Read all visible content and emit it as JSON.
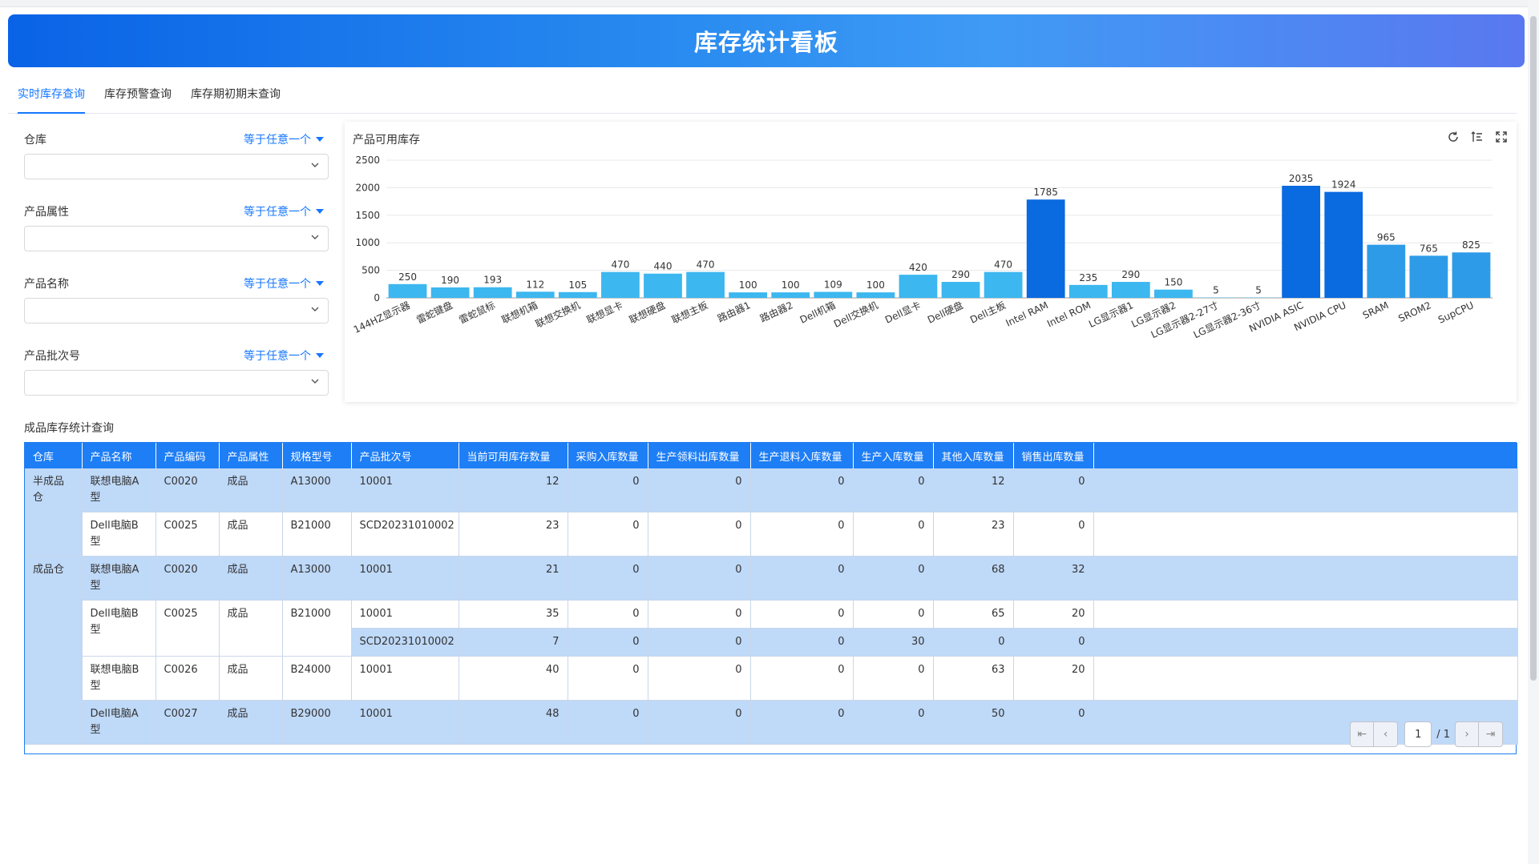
{
  "header": {
    "title": "库存统计看板"
  },
  "tabs": [
    {
      "label": "实时库存查询",
      "active": true
    },
    {
      "label": "库存预警查询",
      "active": false
    },
    {
      "label": "库存期初期末查询",
      "active": false
    }
  ],
  "filters": [
    {
      "label": "仓库",
      "operator": "等于任意一个"
    },
    {
      "label": "产品属性",
      "operator": "等于任意一个"
    },
    {
      "label": "产品名称",
      "operator": "等于任意一个"
    },
    {
      "label": "产品批次号",
      "operator": "等于任意一个"
    }
  ],
  "chart_panel": {
    "title": "产品可用库存",
    "tools": [
      "refresh-icon",
      "sort-icon",
      "fullscreen-icon"
    ]
  },
  "chart_data": {
    "type": "bar",
    "categories": [
      "144HZ显示器",
      "雷蛇键盘",
      "雷蛇鼠标",
      "联想机箱",
      "联想交换机",
      "联想显卡",
      "联想硬盘",
      "联想主板",
      "路由器1",
      "路由器2",
      "Dell机箱",
      "Dell交换机",
      "Dell显卡",
      "Dell硬盘",
      "Dell主板",
      "Intel RAM",
      "Intel ROM",
      "LG显示器1",
      "LG显示器2",
      "LG显示器2-27寸",
      "LG显示器2-36寸",
      "NVIDIA ASIC",
      "NVIDIA CPU",
      "SRAM",
      "SROM2",
      "SupCPU"
    ],
    "values": [
      250,
      190,
      193,
      112,
      105,
      470,
      440,
      470,
      100,
      100,
      109,
      100,
      420,
      290,
      470,
      1785,
      235,
      290,
      150,
      5,
      5,
      2035,
      1924,
      965,
      765,
      825
    ],
    "ylim": [
      0,
      2500
    ],
    "yticks": [
      0,
      500,
      1000,
      1500,
      2000,
      2500
    ],
    "grid": true,
    "colors": {
      "light": "#3cb7ef",
      "mid": "#2e9be8",
      "dark": "#0a6ae0"
    }
  },
  "table": {
    "title": "成品库存统计查询",
    "columns": [
      "仓库",
      "产品名称",
      "产品编码",
      "产品属性",
      "规格型号",
      "产品批次号",
      "当前可用库存数量",
      "采购入库数量",
      "生产领料出库数量",
      "生产退料入库数量",
      "生产入库数量",
      "其他入库数量",
      "销售出库数量"
    ],
    "groups": [
      {
        "warehouse": "半成品仓",
        "rows": [
          {
            "name": "联想电脑A型",
            "code": "C0020",
            "attr": "成品",
            "spec": "A13000",
            "batch": "10001",
            "avail": "12",
            "purchase": "0",
            "issue": "0",
            "ret": "0",
            "prod": "0",
            "other": "12",
            "sale": "0",
            "shade": "r1"
          },
          {
            "name": "Dell电脑B型",
            "code": "C0025",
            "attr": "成品",
            "spec": "B21000",
            "batch": "SCD20231010002",
            "avail": "23",
            "purchase": "0",
            "issue": "0",
            "ret": "0",
            "prod": "0",
            "other": "23",
            "sale": "0",
            "shade": "r2"
          }
        ]
      },
      {
        "warehouse": "成品仓",
        "rows": [
          {
            "name": "联想电脑A型",
            "code": "C0020",
            "attr": "成品",
            "spec": "A13000",
            "batch": "10001",
            "avail": "21",
            "purchase": "0",
            "issue": "0",
            "ret": "0",
            "prod": "0",
            "other": "68",
            "sale": "32",
            "shade": "r1"
          },
          {
            "name": "Dell电脑B型",
            "code": "C0025",
            "attr": "成品",
            "spec": "B21000",
            "batch": "10001",
            "avail": "35",
            "purchase": "0",
            "issue": "0",
            "ret": "0",
            "prod": "0",
            "other": "65",
            "sale": "20",
            "shade": "r2"
          },
          {
            "name": "",
            "code": "",
            "attr": "",
            "spec": "",
            "batch": "SCD20231010002",
            "avail": "7",
            "purchase": "0",
            "issue": "0",
            "ret": "0",
            "prod": "30",
            "other": "0",
            "sale": "0",
            "shade": "r1",
            "sub": true
          },
          {
            "name": "联想电脑B型",
            "code": "C0026",
            "attr": "成品",
            "spec": "B24000",
            "batch": "10001",
            "avail": "40",
            "purchase": "0",
            "issue": "0",
            "ret": "0",
            "prod": "0",
            "other": "63",
            "sale": "20",
            "shade": "r2"
          },
          {
            "name": "Dell电脑A型",
            "code": "C0027",
            "attr": "成品",
            "spec": "B29000",
            "batch": "10001",
            "avail": "48",
            "purchase": "0",
            "issue": "0",
            "ret": "0",
            "prod": "0",
            "other": "50",
            "sale": "0",
            "shade": "r1"
          }
        ]
      }
    ]
  },
  "pagination": {
    "current": "1",
    "total": "/ 1"
  }
}
